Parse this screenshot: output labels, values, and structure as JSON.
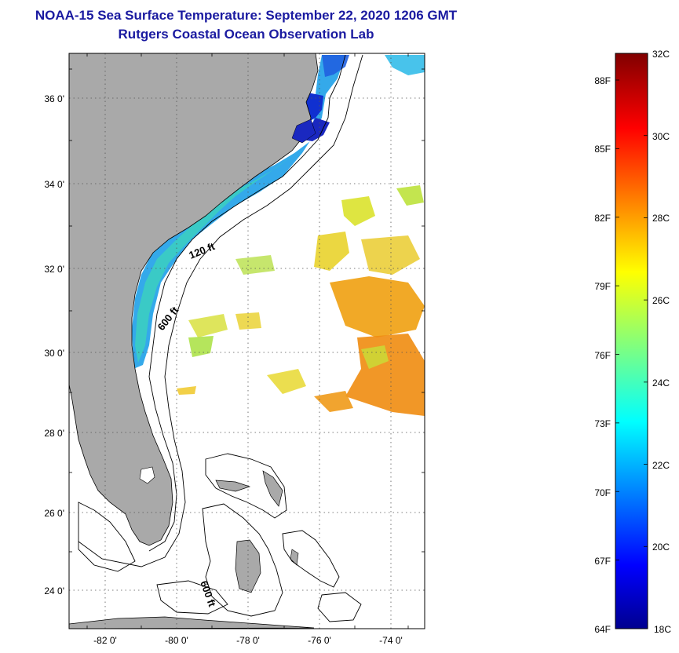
{
  "header": {
    "title_line1": "NOAA-15 Sea Surface Temperature:  September 22, 2020 1206 GMT",
    "title_line2": "Rutgers Coastal Ocean Observation Lab"
  },
  "map": {
    "lat_range": [
      23,
      37.1
    ],
    "lon_range": [
      -83,
      -73
    ],
    "lat_ticks": [
      {
        "value": 36,
        "label": "36 0'"
      },
      {
        "value": 34,
        "label": "34 0'"
      },
      {
        "value": 32,
        "label": "32 0'"
      },
      {
        "value": 30,
        "label": "30 0'"
      },
      {
        "value": 28,
        "label": "28 0'"
      },
      {
        "value": 26,
        "label": "26 0'"
      },
      {
        "value": 24,
        "label": "24 0'"
      }
    ],
    "lon_ticks": [
      {
        "value": -82,
        "label": "-82 0'"
      },
      {
        "value": -80,
        "label": "-80 0'"
      },
      {
        "value": -78,
        "label": "-78 0'"
      },
      {
        "value": -76,
        "label": "-76 0'"
      },
      {
        "value": -74,
        "label": "-74 0'"
      }
    ],
    "isobath_labels": [
      "120 ft",
      "600 ft",
      "600 ft"
    ],
    "colors": {
      "land": "#a9a9a9",
      "water": "#ffffff",
      "grid": "#555555"
    }
  },
  "colorbar": {
    "celsius_range": [
      18,
      32
    ],
    "celsius_labels": [
      "32C",
      "30C",
      "28C",
      "26C",
      "24C",
      "22C",
      "20C",
      "18C"
    ],
    "fahrenheit_labels": [
      "88F",
      "85F",
      "82F",
      "79F",
      "76F",
      "73F",
      "70F",
      "67F",
      "64F"
    ]
  }
}
